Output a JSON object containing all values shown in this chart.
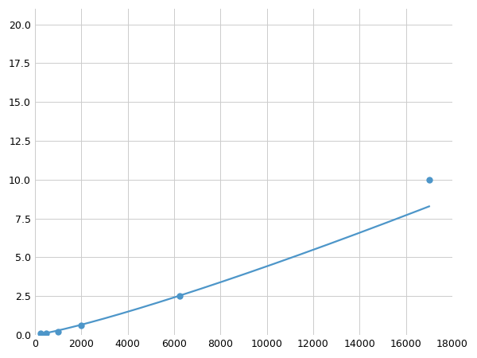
{
  "x_points": [
    250,
    500,
    1000,
    2000,
    6250,
    17000
  ],
  "y_points": [
    0.08,
    0.12,
    0.2,
    0.6,
    2.5,
    10.0
  ],
  "line_color": "#4d96c9",
  "marker_color": "#4d96c9",
  "marker_size": 6,
  "line_width": 1.6,
  "xlim": [
    0,
    18000
  ],
  "ylim": [
    0,
    21
  ],
  "xticks": [
    0,
    2000,
    4000,
    6000,
    8000,
    10000,
    12000,
    14000,
    16000,
    18000
  ],
  "yticks": [
    0.0,
    2.5,
    5.0,
    7.5,
    10.0,
    12.5,
    15.0,
    17.5,
    20.0
  ],
  "grid_color": "#cccccc",
  "bg_color": "#ffffff",
  "tick_label_fontsize": 9,
  "figsize": [
    6.0,
    4.5
  ],
  "dpi": 100
}
